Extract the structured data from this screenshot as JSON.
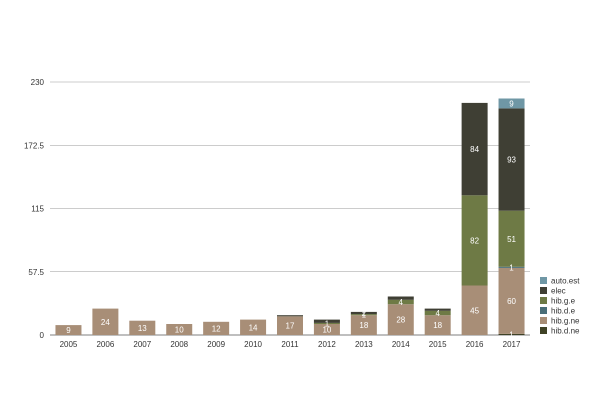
{
  "chart_data": {
    "type": "bar",
    "stacked": true,
    "title": "",
    "xlabel": "",
    "ylabel": "",
    "categories": [
      "2005",
      "2006",
      "2007",
      "2008",
      "2009",
      "2010",
      "2011",
      "2012",
      "2013",
      "2014",
      "2015",
      "2016",
      "2017"
    ],
    "ylim": [
      0,
      230
    ],
    "yticks": [
      "0",
      "57.5",
      "115",
      "172.5",
      "230"
    ],
    "grid": true,
    "legend_position": "bottom-right",
    "series": [
      {
        "name": "hib.d.ne",
        "color": "#3f4226",
        "values": [
          0,
          0,
          0,
          0,
          0,
          0,
          0,
          0,
          0,
          0,
          0,
          0,
          1
        ],
        "labels": [
          "",
          "",
          "",
          "",
          "",
          "",
          "",
          "",
          "",
          "",
          "",
          "",
          "1"
        ]
      },
      {
        "name": "hib.g.ne",
        "color": "#a88e77",
        "values": [
          9,
          24,
          13,
          10,
          12,
          14,
          17,
          10,
          18,
          28,
          18,
          45,
          60
        ],
        "labels": [
          "9",
          "24",
          "13",
          "10",
          "12",
          "14",
          "17",
          "10",
          "18",
          "28",
          "18",
          "45",
          "60"
        ]
      },
      {
        "name": "hib.d.e",
        "color": "#4a6e78",
        "values": [
          0,
          0,
          0,
          0,
          0,
          0,
          0,
          0,
          0,
          0,
          0,
          0,
          1
        ],
        "labels": [
          "",
          "",
          "",
          "",
          "",
          "",
          "",
          "",
          "",
          "",
          "",
          "",
          "1"
        ]
      },
      {
        "name": "hib.g.e",
        "color": "#6e7a45",
        "values": [
          0,
          0,
          0,
          0,
          0,
          0,
          0,
          1,
          1,
          4,
          4,
          82,
          51
        ],
        "labels": [
          "",
          "",
          "",
          "",
          "",
          "",
          "",
          "1",
          "1",
          "4",
          "4",
          "82",
          "51"
        ]
      },
      {
        "name": "elec",
        "color": "#3f3f34",
        "values": [
          0,
          0,
          0,
          0,
          0,
          0,
          1,
          3,
          2,
          3,
          2,
          84,
          93
        ],
        "labels": [
          "",
          "",
          "",
          "",
          "",
          "",
          "",
          "",
          "2",
          "",
          "",
          "84",
          "93"
        ]
      },
      {
        "name": "auto.est",
        "color": "#6f97a5",
        "values": [
          0,
          0,
          0,
          0,
          0,
          0,
          0,
          0,
          0,
          0,
          0,
          0,
          9
        ],
        "labels": [
          "",
          "",
          "",
          "",
          "",
          "",
          "",
          "",
          "",
          "",
          "",
          "",
          "9"
        ]
      }
    ],
    "legend_order": [
      "auto.est",
      "elec",
      "hib.g.e",
      "hib.d.e",
      "hib.g.ne",
      "hib.d.ne"
    ]
  }
}
